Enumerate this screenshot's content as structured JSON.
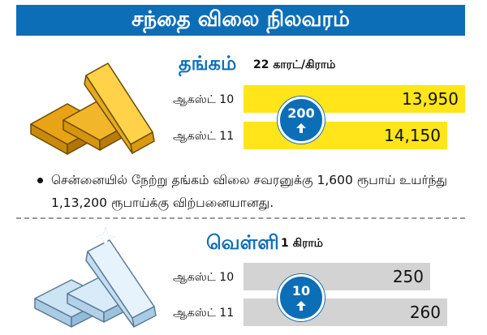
{
  "header": {
    "title": "சந்தை விலை நிலவரம்"
  },
  "gold": {
    "title": "தங்கம்",
    "unit": "22 காரட்/கிராம்",
    "rows": [
      {
        "date": "ஆகஸ்ட் 10",
        "price": "13,950"
      },
      {
        "date": "ஆகஸ்ட் 11",
        "price": "14,150"
      }
    ],
    "change": "200",
    "bar_color": "#ffe51a"
  },
  "note": {
    "text": "சென்னையில் நேற்று தங்கம் விலை சவரனுக்கு 1,600 ரூபாய் உயர்ந்து 1,13,200 ரூபாய்க்கு விற்பனையானது."
  },
  "silver": {
    "title": "வெள்ளி",
    "unit": "1 கிராம்",
    "rows": [
      {
        "date": "ஆகஸ்ட் 10",
        "price": "250"
      },
      {
        "date": "ஆகஸ்ட் 11",
        "price": "260"
      }
    ],
    "change": "10",
    "bar_color": "#d3d3d3"
  },
  "colors": {
    "accent": "#0d6eb8"
  },
  "icons": {
    "change": "up-arrow-icon",
    "gold": "gold-bars-illustration",
    "silver": "silver-bars-illustration"
  }
}
